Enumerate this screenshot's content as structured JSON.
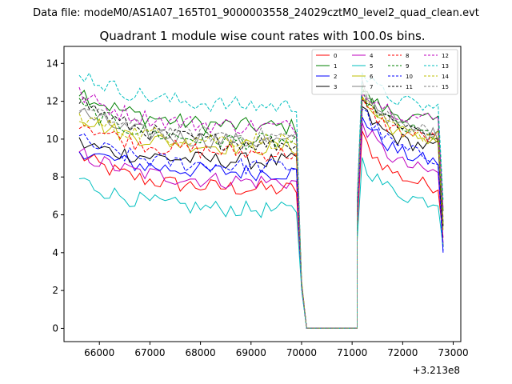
{
  "chart_data": {
    "type": "line",
    "suptitle": "Data file: modeM0/AS1A07_165T01_9000003558_24029cztM0_level2_quad_clean.evt",
    "title": "Quadrant 1 module wise count rates with 100.0s bins.",
    "xlabel": "",
    "ylabel": "",
    "x_offset_label": "+3.213e8",
    "xlim": [
      65300,
      73150
    ],
    "ylim": [
      -0.7,
      14.9
    ],
    "xticks": [
      66000,
      67000,
      68000,
      69000,
      70000,
      71000,
      72000,
      73000
    ],
    "xtick_labels": [
      "66000",
      "67000",
      "68000",
      "69000",
      "70000",
      "71000",
      "72000",
      "73000"
    ],
    "yticks": [
      0,
      2,
      4,
      6,
      8,
      10,
      12,
      14
    ],
    "ytick_labels": [
      "0",
      "2",
      "4",
      "6",
      "8",
      "10",
      "12",
      "14"
    ],
    "x_start": 65600,
    "bin": 100,
    "gap_start": 70000,
    "gap_end": 71200,
    "segment1_end": 69950,
    "segment2_start": 71100,
    "segment2_end": 72800,
    "legend_position": "upper right",
    "legend_columns": 4,
    "series": [
      {
        "name": "0",
        "color": "#ff0000",
        "dash": "solid",
        "level1": 7.3,
        "start1": 9.2,
        "level2": 7.3,
        "peak2": 10.7,
        "end": 4.8
      },
      {
        "name": "1",
        "color": "#008000",
        "dash": "solid",
        "level1": 10.6,
        "start1": 12.6,
        "level2": 10.8,
        "peak2": 12.9,
        "end": 6.2
      },
      {
        "name": "2",
        "color": "#0000ff",
        "dash": "solid",
        "level1": 8.2,
        "start1": 9.5,
        "level2": 8.6,
        "peak2": 11.8,
        "end": 4.0
      },
      {
        "name": "3",
        "color": "#000000",
        "dash": "solid",
        "level1": 8.8,
        "start1": 9.8,
        "level2": 9.4,
        "peak2": 12.0,
        "end": 4.3
      },
      {
        "name": "4",
        "color": "#bf00bf",
        "dash": "solid",
        "level1": 7.7,
        "start1": 9.3,
        "level2": 8.0,
        "peak2": 11.5,
        "end": 4.5
      },
      {
        "name": "5",
        "color": "#00bfbf",
        "dash": "solid",
        "level1": 6.2,
        "start1": 7.9,
        "level2": 6.5,
        "peak2": 9.3,
        "end": 4.3
      },
      {
        "name": "6",
        "color": "#bfbf00",
        "dash": "solid",
        "level1": 9.5,
        "start1": 11.3,
        "level2": 9.8,
        "peak2": 12.6,
        "end": 5.2
      },
      {
        "name": "7",
        "color": "#808080",
        "dash": "solid",
        "level1": 9.8,
        "start1": 11.5,
        "level2": 10.0,
        "peak2": 13.5,
        "end": 5.5
      },
      {
        "name": "8",
        "color": "#ff0000",
        "dash": "dashed",
        "level1": 9.2,
        "start1": 11.0,
        "level2": 9.9,
        "peak2": 12.3,
        "end": 5.8
      },
      {
        "name": "9",
        "color": "#008000",
        "dash": "dashed",
        "level1": 9.8,
        "start1": 11.8,
        "level2": 10.0,
        "peak2": 13.0,
        "end": 5.6
      },
      {
        "name": "10",
        "color": "#0000ff",
        "dash": "dashed",
        "level1": 8.5,
        "start1": 10.0,
        "level2": 8.8,
        "peak2": 12.2,
        "end": 4.1
      },
      {
        "name": "11",
        "color": "#000000",
        "dash": "dashed",
        "level1": 9.7,
        "start1": 12.2,
        "level2": 10.2,
        "peak2": 12.9,
        "end": 5.4
      },
      {
        "name": "12",
        "color": "#bf00bf",
        "dash": "dashed",
        "level1": 10.6,
        "start1": 12.4,
        "level2": 10.9,
        "peak2": 13.1,
        "end": 6.3
      },
      {
        "name": "13",
        "color": "#00bfbf",
        "dash": "dashed",
        "level1": 11.7,
        "start1": 13.6,
        "level2": 11.5,
        "peak2": 13.9,
        "end": 6.8
      },
      {
        "name": "14",
        "color": "#bfbf00",
        "dash": "dashed",
        "level1": 9.9,
        "start1": 11.2,
        "level2": 10.0,
        "peak2": 12.3,
        "end": 5.5
      },
      {
        "name": "15",
        "color": "#808080",
        "dash": "dashed",
        "level1": 10.1,
        "start1": 11.7,
        "level2": 10.3,
        "peak2": 12.7,
        "end": 5.7
      }
    ]
  }
}
